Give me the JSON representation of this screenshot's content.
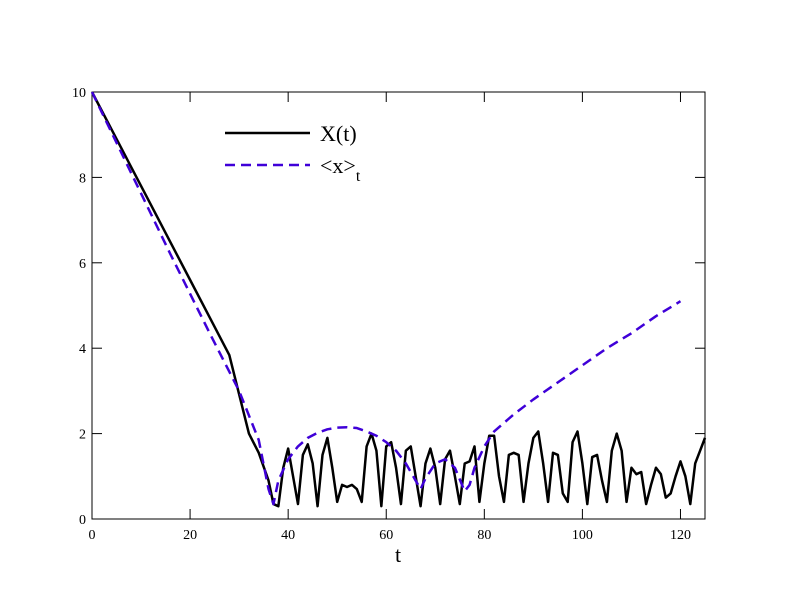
{
  "chart_data": {
    "type": "line",
    "xlabel": "t",
    "xlim": [
      0,
      125
    ],
    "xticks": [
      0,
      20,
      40,
      60,
      80,
      100,
      120
    ],
    "ylim": [
      0,
      10
    ],
    "yticks": [
      0,
      2,
      4,
      6,
      8,
      10
    ],
    "legend": "upper left",
    "series": [
      {
        "name": "X(t)",
        "color": "#000000",
        "dash": false,
        "x": [
          0,
          4,
          8,
          12,
          16,
          20,
          24,
          28,
          32,
          34,
          36,
          37,
          38,
          39,
          40,
          41,
          42,
          43,
          44,
          45,
          46,
          47,
          48,
          49,
          50,
          51,
          52,
          53,
          54,
          55,
          56,
          57,
          58,
          59,
          60,
          61,
          62,
          63,
          64,
          65,
          66,
          67,
          68,
          69,
          70,
          71,
          72,
          73,
          74,
          75,
          76,
          77,
          78,
          79,
          80,
          81,
          82,
          83,
          84,
          85,
          86,
          87,
          88,
          89,
          90,
          91,
          92,
          93,
          94,
          95,
          96,
          97,
          98,
          99,
          100,
          101,
          102,
          103,
          104,
          105,
          106,
          107,
          108,
          109,
          110,
          111,
          112,
          113,
          114,
          115,
          116,
          117,
          118,
          119,
          120,
          121,
          122,
          123,
          124,
          125
        ],
        "values": [
          10,
          9.12,
          8.24,
          7.36,
          6.48,
          5.6,
          4.72,
          3.84,
          2.0,
          1.55,
          0.9,
          0.35,
          0.3,
          1.2,
          1.65,
          1.0,
          0.35,
          1.5,
          1.75,
          1.3,
          0.3,
          1.5,
          1.9,
          1.2,
          0.4,
          0.8,
          0.75,
          0.8,
          0.7,
          0.4,
          1.7,
          2.0,
          1.6,
          0.3,
          1.7,
          1.8,
          1.2,
          0.35,
          1.6,
          1.7,
          1.0,
          0.3,
          1.3,
          1.65,
          1.2,
          0.35,
          1.4,
          1.6,
          1.0,
          0.35,
          1.3,
          1.35,
          1.7,
          0.4,
          1.3,
          1.95,
          1.95,
          1.0,
          0.4,
          1.5,
          1.55,
          1.5,
          0.4,
          1.3,
          1.9,
          2.05,
          1.3,
          0.4,
          1.55,
          1.5,
          0.6,
          0.4,
          1.8,
          2.05,
          1.3,
          0.35,
          1.45,
          1.5,
          0.9,
          0.4,
          1.6,
          2.0,
          1.6,
          0.4,
          1.2,
          1.05,
          1.1,
          0.35,
          0.8,
          1.2,
          1.05,
          0.5,
          0.6,
          1.0,
          1.35,
          1.0,
          0.35,
          1.3,
          1.6,
          1.9
        ]
      },
      {
        "name": "<x>",
        "name_subscript": "t",
        "color": "#3f00d8",
        "dash": true,
        "x": [
          0,
          8,
          16,
          24,
          30,
          34,
          36,
          37,
          38,
          40,
          42,
          44,
          46,
          48,
          50,
          52,
          54,
          56,
          58,
          60,
          62,
          64,
          66,
          67,
          68,
          70,
          72,
          74,
          76,
          77,
          78,
          80,
          82,
          86,
          90,
          95,
          100,
          105,
          110,
          115,
          120
        ],
        "values": [
          10,
          8.1,
          6.2,
          4.35,
          3.0,
          1.85,
          0.7,
          0.35,
          0.9,
          1.4,
          1.7,
          1.9,
          2.02,
          2.1,
          2.14,
          2.15,
          2.13,
          2.05,
          1.95,
          1.8,
          1.6,
          1.3,
          0.9,
          0.7,
          0.95,
          1.3,
          1.4,
          1.2,
          0.65,
          0.8,
          1.2,
          1.7,
          2.05,
          2.45,
          2.8,
          3.2,
          3.6,
          4.0,
          4.35,
          4.75,
          5.1
        ]
      }
    ]
  }
}
